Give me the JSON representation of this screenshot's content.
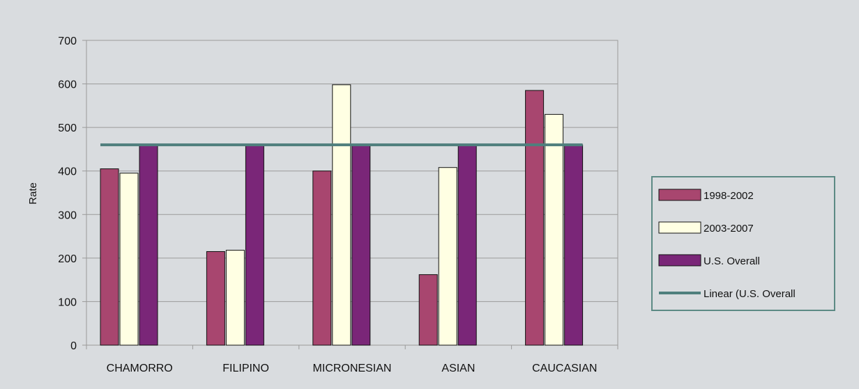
{
  "chart_data": {
    "type": "bar",
    "title": "",
    "xlabel": "",
    "ylabel": "Rate",
    "ylim": [
      0,
      700
    ],
    "yticks": [
      0,
      100,
      200,
      300,
      400,
      500,
      600,
      700
    ],
    "grid": true,
    "legend_position": "right",
    "categories": [
      "CHAMORRO",
      "FILIPINO",
      "MICRONESIAN",
      "ASIAN",
      "CAUCASIAN"
    ],
    "series": [
      {
        "name": "1998-2002",
        "values": [
          405,
          215,
          400,
          162,
          585
        ],
        "color": "#a8466f"
      },
      {
        "name": "2003-2007",
        "values": [
          395,
          218,
          598,
          408,
          530
        ],
        "color": "#ffffe3"
      },
      {
        "name": "U.S. Overall",
        "values": [
          460,
          460,
          460,
          460,
          460
        ],
        "color": "#7a2678"
      }
    ],
    "trendline": {
      "name": "Linear (U.S. Overall",
      "value": 460,
      "color": "#4f7f7d"
    },
    "colors": {
      "background": "#d9dcdf",
      "plot_area": "#d9dcdf",
      "gridline": "#9a9a9a",
      "legend_border": "#5c8a84",
      "bar_outline": "#111111"
    }
  }
}
